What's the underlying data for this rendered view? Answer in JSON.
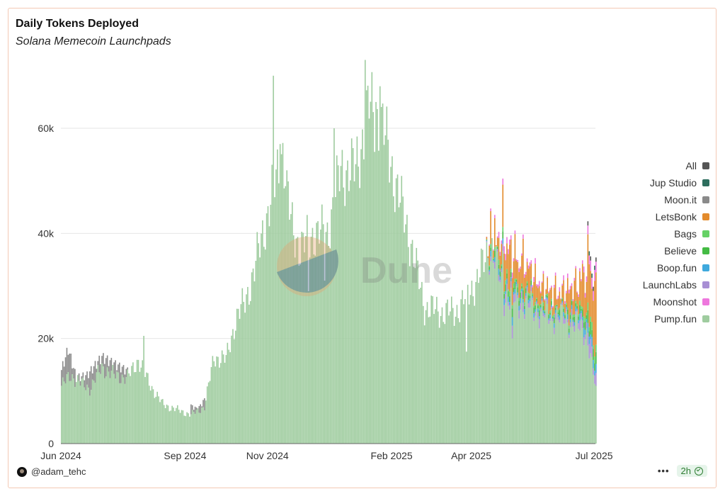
{
  "header": {
    "title": "Daily Tokens Deployed",
    "subtitle": "Solana Memecoin Launchpads"
  },
  "watermark": {
    "text": "Dune"
  },
  "footer": {
    "author": "@adam_tehc",
    "menu_label": "•••",
    "refresh_label": "2h"
  },
  "chart_data": {
    "type": "bar",
    "stacked": true,
    "title": "Daily Tokens Deployed",
    "subtitle": "Solana Memecoin Launchpads",
    "xlabel": "",
    "ylabel": "",
    "x_range": [
      "2024-06-01",
      "2025-07-02"
    ],
    "xticks": [
      "Jun 2024",
      "Sep 2024",
      "Nov 2024",
      "Feb 2025",
      "Apr 2025",
      "Jul 2025"
    ],
    "ylim": [
      0,
      72000
    ],
    "yticks": [
      0,
      20000,
      40000,
      60000
    ],
    "ytick_labels": [
      "0",
      "20k",
      "40k",
      "60k"
    ],
    "grid": true,
    "legend_position": "right",
    "legend": [
      {
        "name": "All",
        "color": "#555555"
      },
      {
        "name": "Jup Studio",
        "color": "#2e6e5e"
      },
      {
        "name": "Moon.it",
        "color": "#8a8a8a"
      },
      {
        "name": "LetsBonk",
        "color": "#e38b2c"
      },
      {
        "name": "Bags",
        "color": "#66d166"
      },
      {
        "name": "Believe",
        "color": "#44bb44"
      },
      {
        "name": "Boop.fun",
        "color": "#3fa9dd"
      },
      {
        "name": "LaunchLabs",
        "color": "#a88fd4"
      },
      {
        "name": "Moonshot",
        "color": "#ee77dd"
      },
      {
        "name": "Pump.fun",
        "color": "#9fcc9f"
      }
    ],
    "pumpfun_anchors": [
      [
        "2024-06-01",
        11000
      ],
      [
        "2024-06-08",
        13000
      ],
      [
        "2024-06-15",
        11500
      ],
      [
        "2024-06-22",
        10500
      ],
      [
        "2024-07-01",
        14500
      ],
      [
        "2024-07-10",
        13000
      ],
      [
        "2024-07-20",
        12500
      ],
      [
        "2024-07-28",
        16000
      ],
      [
        "2024-08-05",
        11500
      ],
      [
        "2024-08-15",
        7500
      ],
      [
        "2024-08-25",
        6500
      ],
      [
        "2024-09-05",
        5500
      ],
      [
        "2024-09-15",
        7000
      ],
      [
        "2024-09-22",
        16500
      ],
      [
        "2024-10-01",
        16000
      ],
      [
        "2024-10-08",
        23500
      ],
      [
        "2024-10-15",
        27000
      ],
      [
        "2024-10-22",
        33000
      ],
      [
        "2024-10-28",
        40000
      ],
      [
        "2024-11-05",
        48000
      ],
      [
        "2024-11-12",
        56000
      ],
      [
        "2024-11-18",
        42000
      ],
      [
        "2024-11-25",
        37000
      ],
      [
        "2024-12-05",
        40000
      ],
      [
        "2024-12-15",
        40000
      ],
      [
        "2024-12-25",
        52000
      ],
      [
        "2025-01-05",
        52000
      ],
      [
        "2025-01-15",
        64000
      ],
      [
        "2025-01-25",
        60000
      ],
      [
        "2025-02-05",
        48000
      ],
      [
        "2025-02-15",
        38000
      ],
      [
        "2025-02-25",
        26000
      ],
      [
        "2025-03-10",
        25000
      ],
      [
        "2025-03-20",
        25000
      ],
      [
        "2025-04-05",
        31000
      ],
      [
        "2025-04-15",
        38000
      ],
      [
        "2025-04-25",
        28000
      ],
      [
        "2025-05-05",
        27000
      ],
      [
        "2025-05-15",
        26000
      ],
      [
        "2025-05-25",
        24500
      ],
      [
        "2025-06-05",
        24000
      ],
      [
        "2025-06-15",
        23000
      ],
      [
        "2025-06-25",
        21000
      ],
      [
        "2025-07-02",
        10000
      ]
    ],
    "spikes": [
      [
        "2024-08-01",
        20500
      ],
      [
        "2024-11-05",
        70000
      ],
      [
        "2024-11-10",
        57000
      ],
      [
        "2024-11-15",
        52000
      ],
      [
        "2024-12-20",
        60000
      ],
      [
        "2025-01-12",
        73000
      ],
      [
        "2025-01-20",
        65000
      ],
      [
        "2025-01-23",
        68000
      ],
      [
        "2025-04-15",
        44500
      ],
      [
        "2025-04-24",
        47000
      ]
    ],
    "dips": [
      [
        "2024-12-01",
        29000
      ],
      [
        "2024-12-13",
        31000
      ],
      [
        "2025-03-28",
        17500
      ],
      [
        "2025-05-01",
        20000
      ]
    ],
    "other_launchpads_totals": [
      [
        "2024-06-01",
        14000
      ],
      [
        "2024-06-06",
        18000
      ],
      [
        "2024-06-12",
        12500
      ],
      [
        "2024-06-20",
        13000
      ],
      [
        "2024-07-01",
        16500
      ],
      [
        "2024-09-10",
        6500
      ],
      [
        "2024-09-18",
        9500
      ],
      [
        "2025-04-12",
        37000
      ],
      [
        "2025-04-20",
        40000
      ],
      [
        "2025-05-01",
        37000
      ],
      [
        "2025-05-10",
        35000
      ],
      [
        "2025-05-20",
        31000
      ],
      [
        "2025-06-01",
        29000
      ],
      [
        "2025-06-15",
        30000
      ],
      [
        "2025-06-28",
        35000
      ],
      [
        "2025-07-02",
        28500
      ]
    ]
  }
}
